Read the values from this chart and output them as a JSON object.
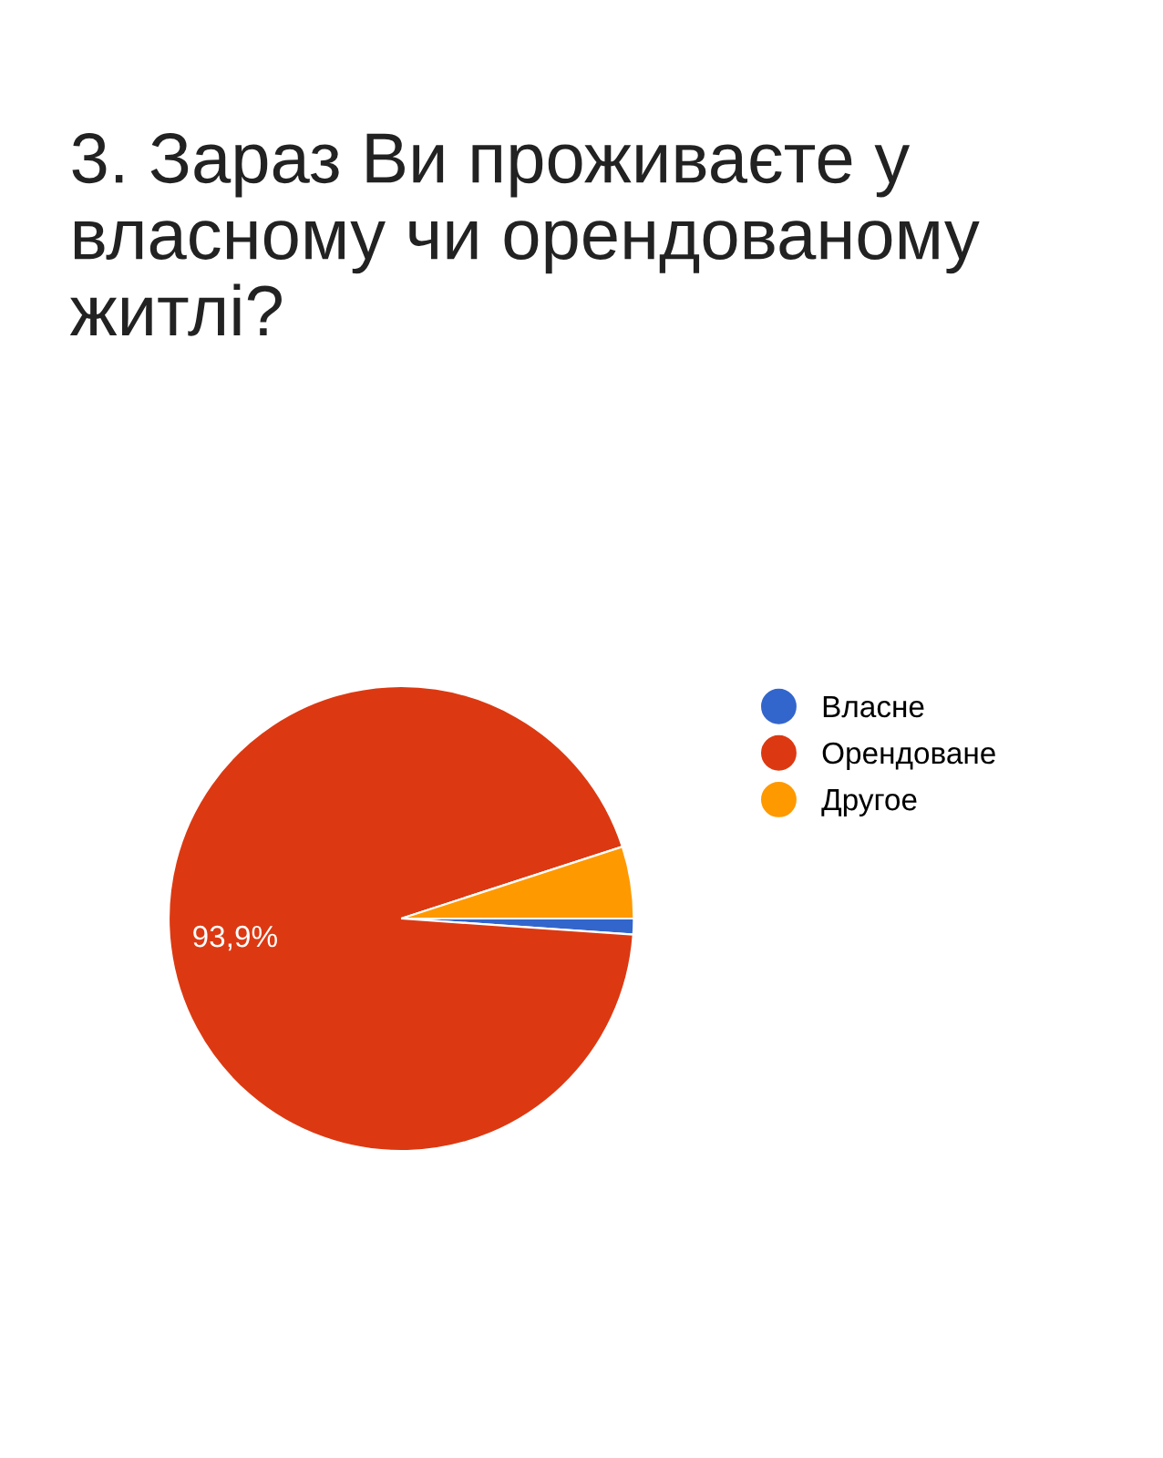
{
  "chart_data": {
    "type": "pie",
    "title": "3. Зараз Ви проживаєте у власному чи орендованому житлі?",
    "categories": [
      "Власне",
      "Орендоване",
      "Другое"
    ],
    "values": [
      1.1,
      93.9,
      5.0
    ],
    "colors": [
      "#3366cc",
      "#dc3912",
      "#ff9900"
    ],
    "value_labels": [
      null,
      "93,9%",
      null
    ],
    "legend": "right"
  }
}
